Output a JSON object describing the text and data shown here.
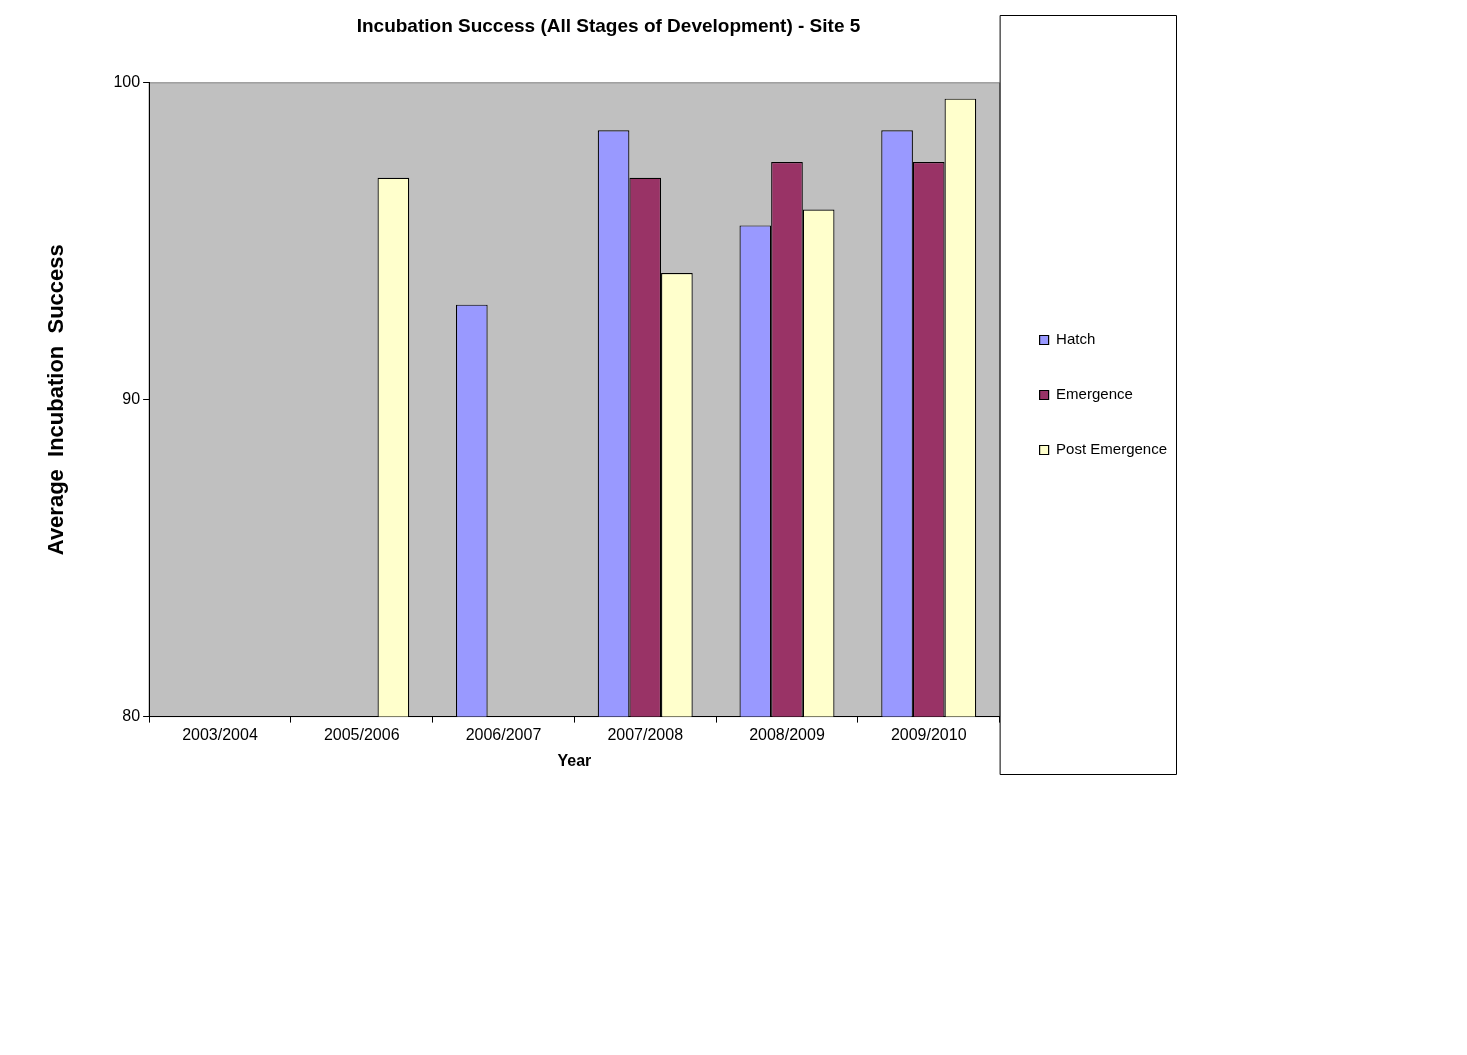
{
  "chart_data": {
    "type": "bar",
    "title": "Incubation Success (All Stages of Development) - Site 5",
    "xlabel": "Year",
    "ylabel": "Average  Incubation  Success",
    "categories": [
      "2003/2004",
      "2005/2006",
      "2006/2007",
      "2007/2008",
      "2008/2009",
      "2009/2010"
    ],
    "series": [
      {
        "name": "Hatch",
        "color": "#9999ff",
        "values": [
          null,
          null,
          93,
          98.5,
          95.5,
          98.5
        ]
      },
      {
        "name": "Emergence",
        "color": "#993366",
        "values": [
          null,
          null,
          null,
          97,
          97.5,
          97.5
        ]
      },
      {
        "name": "Post Emergence",
        "color": "#ffffcc",
        "values": [
          null,
          97,
          null,
          94,
          96,
          99.5
        ]
      }
    ],
    "ylim": [
      80,
      100
    ],
    "yticks": [
      80,
      90,
      100
    ],
    "grid": false,
    "legend": "right"
  }
}
